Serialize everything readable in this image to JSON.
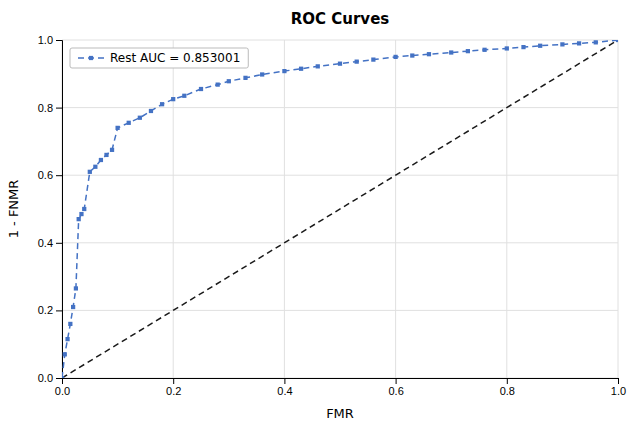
{
  "chart_data": {
    "type": "line",
    "title": "ROC Curves",
    "xlabel": "FMR",
    "ylabel": "1 - FNMR",
    "xlim": [
      0.0,
      1.0
    ],
    "ylim": [
      0.0,
      1.0
    ],
    "xticks": [
      {
        "value": 0.0,
        "label": "0.0"
      },
      0.2,
      0.4,
      0.6,
      0.8,
      {
        "value": 1.0,
        "label": "1.0"
      }
    ],
    "yticks": [
      {
        "value": 0.0,
        "label": "0.0"
      },
      0.2,
      0.4,
      0.6,
      0.8,
      {
        "value": 1.0,
        "label": "1.0"
      }
    ],
    "grid": true,
    "legend": "upper left",
    "series": [
      {
        "name": "Rest AUC = 0.853001",
        "color": "#4472c4",
        "marker": "square",
        "line_style": "dashed",
        "x": [
          0.0,
          0.005,
          0.01,
          0.015,
          0.02,
          0.025,
          0.03,
          0.035,
          0.04,
          0.05,
          0.06,
          0.07,
          0.08,
          0.09,
          0.1,
          0.12,
          0.14,
          0.16,
          0.18,
          0.2,
          0.22,
          0.25,
          0.28,
          0.3,
          0.33,
          0.36,
          0.4,
          0.43,
          0.46,
          0.5,
          0.53,
          0.56,
          0.6,
          0.63,
          0.66,
          0.7,
          0.73,
          0.76,
          0.8,
          0.83,
          0.86,
          0.9,
          0.93,
          0.96,
          1.0
        ],
        "values": [
          0.0,
          0.07,
          0.115,
          0.16,
          0.21,
          0.265,
          0.47,
          0.485,
          0.5,
          0.61,
          0.625,
          0.645,
          0.66,
          0.675,
          0.74,
          0.755,
          0.77,
          0.79,
          0.81,
          0.825,
          0.835,
          0.855,
          0.868,
          0.878,
          0.888,
          0.898,
          0.908,
          0.915,
          0.922,
          0.93,
          0.936,
          0.942,
          0.95,
          0.954,
          0.958,
          0.963,
          0.967,
          0.971,
          0.975,
          0.979,
          0.983,
          0.987,
          0.99,
          0.993,
          1.0
        ]
      },
      {
        "color": "#1a1a1a",
        "line_style": "dashed",
        "x": [
          0,
          1
        ],
        "values": [
          0,
          1
        ]
      }
    ]
  }
}
